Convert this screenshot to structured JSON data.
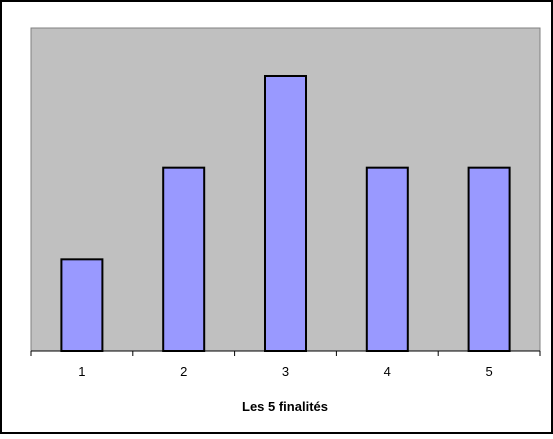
{
  "chart_data": {
    "type": "bar",
    "categories": [
      "1",
      "2",
      "3",
      "4",
      "5"
    ],
    "values": [
      1,
      2,
      3,
      2,
      2
    ],
    "title": "",
    "xlabel": "Les 5 finalités",
    "ylabel": "",
    "ylim": [
      0,
      3
    ],
    "grid": false,
    "legend": "none",
    "colors": {
      "plot_background": "#c0c0c0",
      "bar_fill": "#9999ff",
      "bar_stroke": "#000000",
      "frame": "#000000"
    }
  }
}
